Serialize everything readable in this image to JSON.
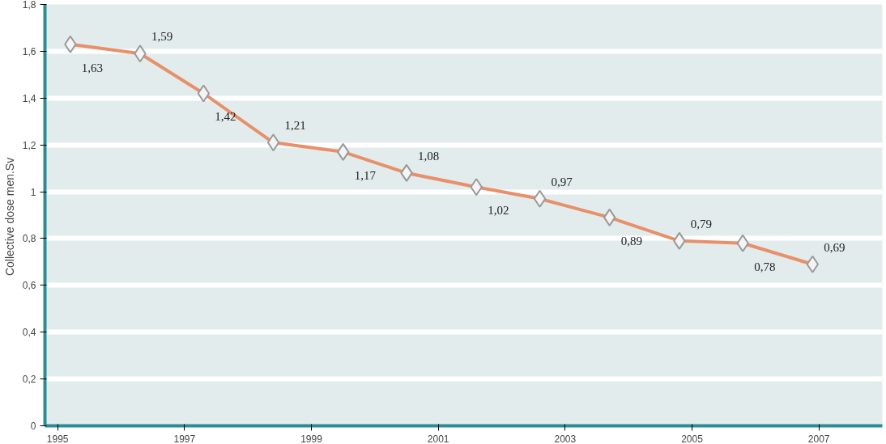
{
  "chart_data": {
    "type": "line",
    "ylabel": "Collective  dose men.Sv",
    "x": [
      1995.2,
      1996.3,
      1997.3,
      1998.4,
      1999.5,
      2000.5,
      2001.6,
      2002.6,
      2003.7,
      2004.8,
      2005.8,
      2006.9
    ],
    "series": [
      {
        "color": "#e8906a",
        "values": [
          1.63,
          1.59,
          1.42,
          1.21,
          1.17,
          1.08,
          1.02,
          0.97,
          0.89,
          0.79,
          0.78,
          0.69
        ]
      }
    ],
    "value_labels": [
      "1,63",
      "1,59",
      "1,42",
      "1,21",
      "1,17",
      "1,08",
      "1,02",
      "0,97",
      "0,89",
      "0,79",
      "0,78",
      "0,69"
    ],
    "xlim": [
      1994.8,
      2008.0
    ],
    "ylim": [
      0,
      1.8
    ],
    "xticks": [
      1995,
      1997,
      1999,
      2001,
      2003,
      2005,
      2007
    ],
    "yticks": [
      0,
      {
        "value": 0.2,
        "label": "0,2"
      },
      {
        "value": 0.4,
        "label": "0,4"
      },
      {
        "value": 0.6,
        "label": "0,6"
      },
      {
        "value": 0.8,
        "label": "0,8"
      },
      1,
      {
        "value": 1.2,
        "label": "1,2"
      },
      {
        "value": 1.4,
        "label": "1,4"
      },
      {
        "value": 1.6,
        "label": "1,6"
      },
      {
        "value": 1.8,
        "label": "1,8"
      }
    ],
    "grid": "y",
    "marker": "diamond",
    "line_style": "solid"
  }
}
